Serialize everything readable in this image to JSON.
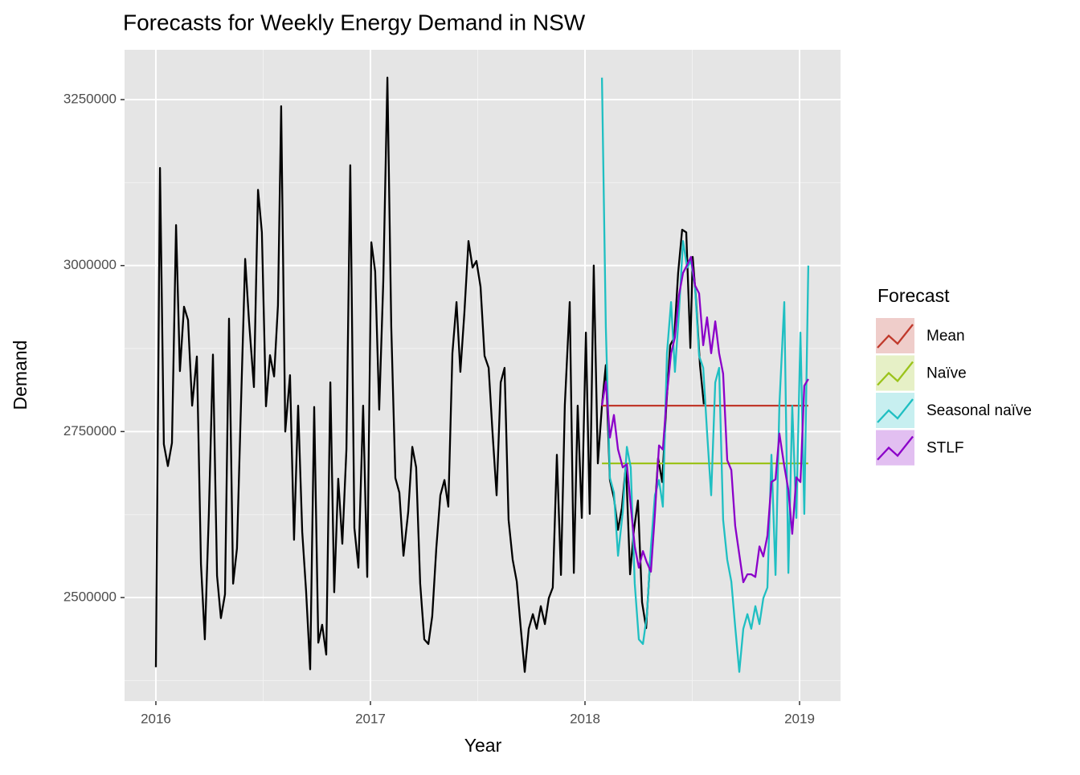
{
  "chart_data": {
    "type": "line",
    "title": "Forecasts for Weekly Energy Demand in NSW",
    "x_label": "Year",
    "y_label": "Demand",
    "legend_title": "Forecast",
    "legend_position": "right",
    "grid": true,
    "xlim": [
      2015.854,
      2019.191
    ],
    "xticks": [
      2016,
      2017,
      2018,
      2019
    ],
    "x_minor_ticks": [
      2016.5,
      2017.5,
      2018.5
    ],
    "ylim": [
      2344000,
      3325000
    ],
    "yticks": [
      2500000,
      2750000,
      3000000,
      3250000
    ],
    "y_minor_ticks": [
      2375000,
      2625000,
      2875000,
      3125000
    ],
    "series": [
      {
        "color": "#000000",
        "x": [
          2016.0,
          2016.019,
          2016.037,
          2016.056,
          2016.075,
          2016.094,
          2016.112,
          2016.131,
          2016.15,
          2016.169,
          2016.191,
          2016.21,
          2016.228,
          2016.247,
          2016.266,
          2016.285,
          2016.303,
          2016.322,
          2016.341,
          2016.36,
          2016.378,
          2016.397,
          2016.416,
          2016.434,
          2016.457,
          2016.476,
          2016.494,
          2016.513,
          2016.532,
          2016.551,
          2016.569,
          2016.584,
          2016.603,
          2016.625,
          2016.644,
          2016.663,
          2016.682,
          2016.7,
          2016.719,
          2016.738,
          2016.757,
          2016.775,
          2016.794,
          2016.813,
          2016.831,
          2016.85,
          2016.869,
          2016.888,
          2016.906,
          2016.925,
          2016.944,
          2016.966,
          2016.985,
          2017.004,
          2017.022,
          2017.041,
          2017.06,
          2017.079,
          2017.097,
          2017.116,
          2017.135,
          2017.154,
          2017.176,
          2017.195,
          2017.213,
          2017.232,
          2017.251,
          2017.27,
          2017.288,
          2017.307,
          2017.326,
          2017.345,
          2017.363,
          2017.382,
          2017.401,
          2017.419,
          2017.438,
          2017.457,
          2017.476,
          2017.494,
          2017.513,
          2017.532,
          2017.551,
          2017.569,
          2017.588,
          2017.607,
          2017.625,
          2017.644,
          2017.663,
          2017.682,
          2017.7,
          2017.719,
          2017.738,
          2017.757,
          2017.775,
          2017.794,
          2017.813,
          2017.831,
          2017.85,
          2017.869,
          2017.888,
          2017.906,
          2017.929,
          2017.948,
          2017.966,
          2017.985,
          2018.004,
          2018.022,
          2018.041,
          2018.06,
          2018.079,
          2018.097,
          2018.116,
          2018.135,
          2018.154,
          2018.172,
          2018.191,
          2018.21,
          2018.228,
          2018.247,
          2018.266,
          2018.285,
          2018.303,
          2018.322,
          2018.341,
          2018.36,
          2018.378,
          2018.397,
          2018.416,
          2018.434,
          2018.453,
          2018.472,
          2018.491,
          2018.502,
          2018.517,
          2018.536,
          2018.554
        ],
        "values": [
          2395000,
          3147000,
          2731000,
          2698000,
          2733000,
          3061000,
          2841000,
          2938000,
          2918000,
          2789000,
          2863000,
          2550000,
          2437000,
          2626000,
          2866000,
          2533000,
          2469000,
          2505000,
          2920000,
          2521000,
          2574000,
          2795000,
          3010000,
          2916000,
          2817000,
          3114000,
          3050000,
          2788000,
          2865000,
          2833000,
          2940000,
          3240000,
          2750000,
          2835000,
          2587000,
          2789000,
          2599000,
          2510000,
          2392000,
          2787000,
          2432000,
          2459000,
          2414000,
          2824000,
          2508000,
          2679000,
          2581000,
          2723000,
          3151000,
          2605000,
          2545000,
          2789000,
          2531000,
          3035000,
          2991000,
          2783000,
          2977000,
          3283000,
          2908000,
          2680000,
          2658000,
          2563000,
          2629000,
          2727000,
          2696000,
          2521000,
          2437000,
          2430000,
          2472000,
          2575000,
          2654000,
          2677000,
          2637000,
          2868000,
          2945000,
          2840000,
          2929000,
          3037000,
          2997000,
          3007000,
          2968000,
          2864000,
          2846000,
          2749000,
          2654000,
          2824000,
          2846000,
          2617000,
          2557000,
          2524000,
          2456000,
          2388000,
          2453000,
          2475000,
          2453000,
          2487000,
          2460000,
          2499000,
          2515000,
          2715000,
          2534000,
          2790000,
          2945000,
          2537000,
          2789000,
          2620000,
          2899000,
          2626000,
          3000000,
          2702000,
          2789000,
          2850000,
          2677000,
          2650000,
          2602000,
          2635000,
          2701000,
          2535000,
          2602000,
          2646000,
          2493000,
          2454000,
          2553000,
          2614000,
          2710000,
          2674000,
          2783000,
          2880000,
          2892000,
          2989000,
          3054000,
          3050000,
          2876000,
          3013000,
          2952000,
          2850000,
          2791000
        ]
      },
      {
        "name": "Mean",
        "color": "#c0392b",
        "x": [
          2018.079,
          2019.041
        ],
        "values": [
          2789000,
          2789000
        ]
      },
      {
        "name": "Naïve",
        "color": "#9bc31a",
        "x": [
          2018.079,
          2019.041
        ],
        "values": [
          2702000,
          2702000
        ]
      },
      {
        "name": "Seasonal naïve",
        "color": "#1fbfc2",
        "x": [
          2018.079,
          2018.097,
          2018.116,
          2018.135,
          2018.154,
          2018.176,
          2018.195,
          2018.213,
          2018.232,
          2018.251,
          2018.27,
          2018.288,
          2018.307,
          2018.326,
          2018.345,
          2018.363,
          2018.382,
          2018.401,
          2018.419,
          2018.438,
          2018.457,
          2018.476,
          2018.494,
          2018.513,
          2018.532,
          2018.551,
          2018.569,
          2018.588,
          2018.607,
          2018.625,
          2018.644,
          2018.663,
          2018.682,
          2018.7,
          2018.719,
          2018.738,
          2018.757,
          2018.775,
          2018.794,
          2018.813,
          2018.831,
          2018.85,
          2018.869,
          2018.888,
          2018.906,
          2018.929,
          2018.948,
          2018.966,
          2018.985,
          2019.004,
          2019.022,
          2019.041
        ],
        "values": [
          3283000,
          2908000,
          2680000,
          2658000,
          2563000,
          2629000,
          2727000,
          2696000,
          2521000,
          2437000,
          2430000,
          2472000,
          2575000,
          2654000,
          2677000,
          2637000,
          2868000,
          2945000,
          2840000,
          2929000,
          3037000,
          2997000,
          3007000,
          2968000,
          2864000,
          2846000,
          2749000,
          2654000,
          2824000,
          2846000,
          2617000,
          2557000,
          2524000,
          2456000,
          2388000,
          2453000,
          2475000,
          2453000,
          2487000,
          2460000,
          2499000,
          2515000,
          2715000,
          2534000,
          2790000,
          2945000,
          2537000,
          2789000,
          2620000,
          2899000,
          2626000,
          3000000
        ]
      },
      {
        "name": "STLF",
        "color": "#8b00c9",
        "x": [
          2018.079,
          2018.097,
          2018.116,
          2018.135,
          2018.154,
          2018.176,
          2018.195,
          2018.213,
          2018.232,
          2018.251,
          2018.27,
          2018.288,
          2018.307,
          2018.326,
          2018.345,
          2018.363,
          2018.382,
          2018.401,
          2018.419,
          2018.438,
          2018.457,
          2018.476,
          2018.494,
          2018.513,
          2018.532,
          2018.551,
          2018.569,
          2018.588,
          2018.607,
          2018.625,
          2018.644,
          2018.663,
          2018.682,
          2018.7,
          2018.719,
          2018.738,
          2018.757,
          2018.775,
          2018.794,
          2018.813,
          2018.831,
          2018.85,
          2018.869,
          2018.888,
          2018.906,
          2018.929,
          2018.948,
          2018.966,
          2018.985,
          2019.004,
          2019.022,
          2019.041
        ],
        "values": [
          2789000,
          2825000,
          2741000,
          2775000,
          2723000,
          2696000,
          2701000,
          2638000,
          2577000,
          2545000,
          2570000,
          2553000,
          2539000,
          2626000,
          2729000,
          2723000,
          2807000,
          2868000,
          2892000,
          2955000,
          2989000,
          3001000,
          3013000,
          2970000,
          2958000,
          2880000,
          2922000,
          2868000,
          2916000,
          2868000,
          2837000,
          2707000,
          2692000,
          2608000,
          2565000,
          2523000,
          2535000,
          2535000,
          2531000,
          2577000,
          2562000,
          2593000,
          2674000,
          2678000,
          2747000,
          2698000,
          2662000,
          2596000,
          2681000,
          2674000,
          2819000,
          2829000
        ]
      }
    ]
  }
}
